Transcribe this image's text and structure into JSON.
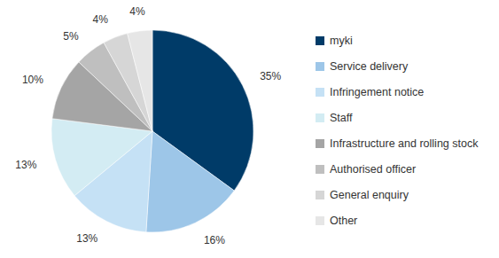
{
  "chart_data": {
    "type": "pie",
    "categories": [
      "myki",
      "Service delivery",
      "Infringement notice",
      "Staff",
      "Infrastructure and rolling stock",
      "Authorised officer",
      "General enquiry",
      "Other"
    ],
    "values": [
      35,
      16,
      13,
      13,
      10,
      5,
      4,
      4
    ],
    "value_labels": [
      "35%",
      "16%",
      "13%",
      "13%",
      "10%",
      "5%",
      "4%",
      "4%"
    ],
    "colors": [
      "#003b68",
      "#9dc6e8",
      "#c5e1f5",
      "#d3ecf3",
      "#a5a5a5",
      "#bfbfbf",
      "#d6d6d6",
      "#e6e6e6"
    ],
    "data_labels": true,
    "legend": "right"
  }
}
